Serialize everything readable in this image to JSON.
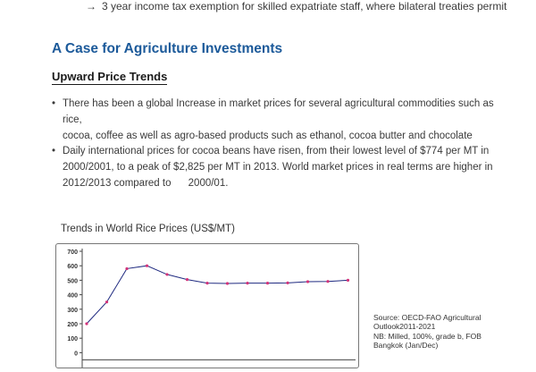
{
  "arrow_text": "3 year income tax exemption for skilled expatriate staff, where bilateral treaties permit",
  "section_title": "A Case for Agriculture Investments",
  "subsection_title": "Upward Price Trends",
  "bullets": [
    {
      "lines": [
        "There has been a global Increase in market prices for several agricultural commodities such as rice,",
        "cocoa, coffee as well as agro-based products such as ethanol, cocoa butter and chocolate"
      ]
    },
    {
      "lines": [
        "Daily international prices for cocoa beans have risen, from their lowest level of $774 per MT in",
        "2000/2001, to a peak of $2,825 per MT in 2013. World market prices in real terms are higher in",
        "2012/2013 compared to      2000/01."
      ]
    }
  ],
  "chart_data": {
    "type": "line",
    "title": "Trends in World Rice Prices (US$/MT)",
    "y_ticks": [
      "700",
      "600",
      "500",
      "400",
      "300",
      "200",
      "100",
      "0"
    ],
    "ylim": [
      0,
      700
    ],
    "values": [
      200,
      350,
      580,
      600,
      540,
      505,
      480,
      478,
      480,
      480,
      482,
      490,
      492,
      500
    ],
    "grid": false,
    "line_color": "#1f2a80",
    "marker_color": "#d2337a"
  },
  "source_lines": [
    "Source: OECD-FAO Agricultural",
    "Outlook2011-2021",
    "NB: Milled, 100%, grade b, FOB",
    "Bangkok (Jan/Dec)"
  ]
}
